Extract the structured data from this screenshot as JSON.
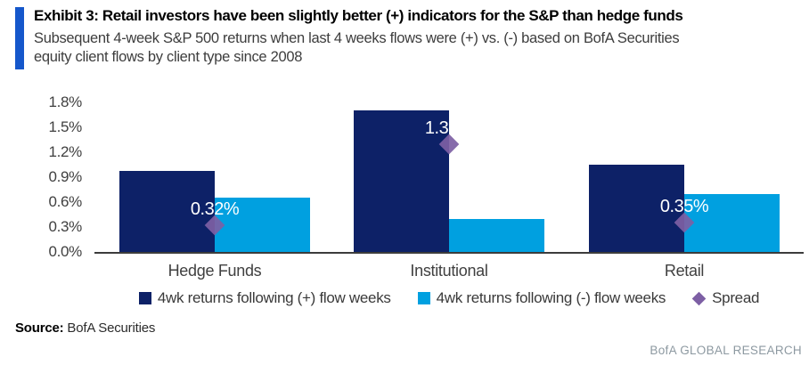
{
  "header": {
    "title": "Exhibit 3:  Retail investors have been slightly better (+) indicators for the S&P than hedge funds",
    "subtitle_line1": "Subsequent 4-week S&P 500 returns when last 4 weeks flows were (+) vs. (-) based on BofA Securities",
    "subtitle_line2": "equity client flows by client type since 2008"
  },
  "chart_data": {
    "type": "bar",
    "categories": [
      "Hedge Funds",
      "Institutional",
      "Retail"
    ],
    "series": [
      {
        "name": "4wk returns following (+) flow weeks",
        "values": [
          0.97,
          1.7,
          1.05
        ],
        "color": "#0d2167"
      },
      {
        "name": "4wk returns following (-) flow weeks",
        "values": [
          0.65,
          0.4,
          0.7
        ],
        "color": "#00a0e0"
      }
    ],
    "spread": {
      "name": "Spread",
      "values": [
        0.32,
        1.3,
        0.35
      ],
      "labels": [
        "0.32%",
        "1.30%",
        "0.35%"
      ],
      "color": "#7d5fa4"
    },
    "ylim": [
      0,
      1.8
    ],
    "ytick_labels": [
      "1.8%",
      "1.5%",
      "1.2%",
      "0.9%",
      "0.6%",
      "0.3%",
      "0.0%"
    ],
    "grid": false,
    "legend_position": "bottom"
  },
  "colors": {
    "accent_bar": "#1557cb",
    "axis_text": "#404040",
    "data_label": "#ffffff"
  },
  "source": {
    "label": "Source:",
    "text": "BofA Securities"
  },
  "footer": {
    "brand": "BofA GLOBAL RESEARCH"
  }
}
